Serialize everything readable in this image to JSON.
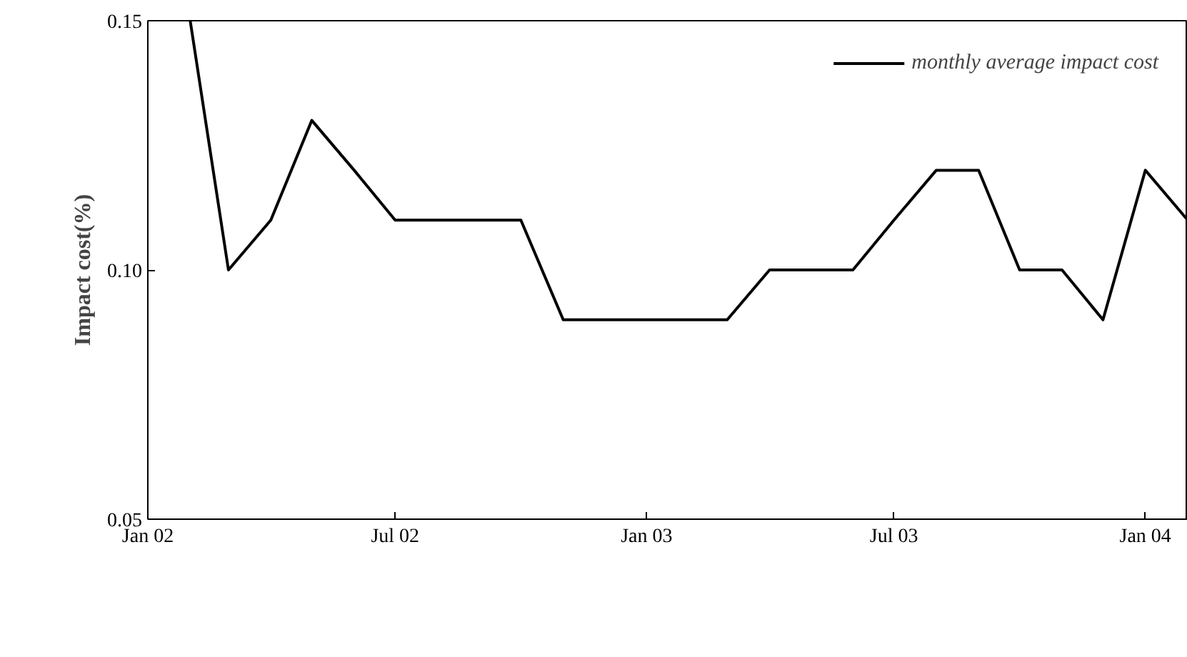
{
  "chart_data": {
    "type": "line",
    "ylabel": "Impact cost(%)",
    "x": [
      "2002-02",
      "2002-03",
      "2002-04",
      "2002-05",
      "2002-06",
      "2002-07",
      "2002-08",
      "2002-09",
      "2002-10",
      "2002-11",
      "2002-12",
      "2003-01",
      "2003-02",
      "2003-03",
      "2003-04",
      "2003-05",
      "2003-06",
      "2003-07",
      "2003-08",
      "2003-09",
      "2003-10",
      "2003-11",
      "2003-12",
      "2004-01",
      "2004-02"
    ],
    "series": [
      {
        "name": "monthly average impact cost",
        "color": "#000000",
        "values": [
          0.15,
          0.1,
          0.11,
          0.13,
          0.12,
          0.11,
          0.11,
          0.11,
          0.11,
          0.09,
          0.09,
          0.09,
          0.09,
          0.09,
          0.1,
          0.1,
          0.1,
          0.11,
          0.12,
          0.12,
          0.1,
          0.1,
          0.09,
          0.12,
          0.11
        ]
      }
    ],
    "xlim": [
      "2002-01-01",
      "2004-02-01"
    ],
    "ylim": [
      0.05,
      0.15
    ],
    "xticks": [
      {
        "value": "2002-01",
        "label": "Jan 02"
      },
      {
        "value": "2002-07",
        "label": "Jul 02"
      },
      {
        "value": "2003-01",
        "label": "Jan 03"
      },
      {
        "value": "2003-07",
        "label": "Jul 03"
      },
      {
        "value": "2004-01",
        "label": "Jan 04"
      }
    ],
    "yticks": [
      {
        "value": 0.05,
        "label": "0.05"
      },
      {
        "value": 0.1,
        "label": "0.10"
      },
      {
        "value": 0.15,
        "label": "0.15"
      }
    ],
    "grid": false,
    "legend": "top right",
    "marker": "none",
    "line_style": "solid"
  }
}
